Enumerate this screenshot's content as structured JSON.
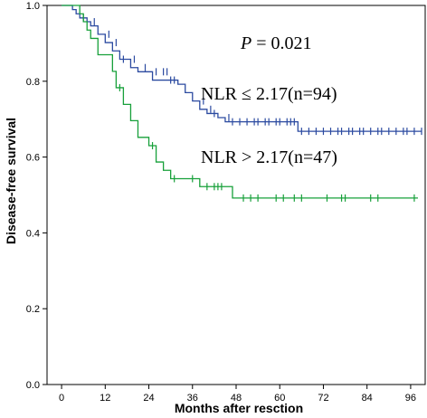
{
  "chart_data": {
    "type": "line",
    "title": "",
    "xlabel": "Months after resction",
    "ylabel": "Disease-free survival",
    "xlim": [
      -4,
      100
    ],
    "ylim": [
      0,
      1.0
    ],
    "x_ticks": [
      0,
      12,
      24,
      36,
      48,
      60,
      72,
      84,
      96
    ],
    "y_ticks": [
      0.0,
      0.2,
      0.4,
      0.6,
      0.8,
      1.0
    ],
    "x_tick_labels": [
      "0",
      "12",
      "24",
      "36",
      "48",
      "60",
      "72",
      "84",
      "96"
    ],
    "y_tick_labels": [
      "0.0",
      "0.2",
      "0.4",
      "0.6",
      "0.8",
      "1.0"
    ],
    "grid": false,
    "annotations": {
      "p_label": "P",
      "p_value": " = 0.021",
      "series_label_1": "NLR ≤ 2.17(n=94)",
      "series_label_2": "NLR > 2.17(n=47)"
    },
    "series": [
      {
        "color": "#2b4aa0",
        "steps": [
          [
            0,
            1.0
          ],
          [
            3,
            1.0
          ],
          [
            3,
            0.989
          ],
          [
            4,
            0.989
          ],
          [
            4,
            0.978
          ],
          [
            5,
            0.978
          ],
          [
            5,
            0.967
          ],
          [
            7,
            0.967
          ],
          [
            7,
            0.957
          ],
          [
            8,
            0.957
          ],
          [
            8,
            0.946
          ],
          [
            10,
            0.946
          ],
          [
            10,
            0.924
          ],
          [
            12,
            0.924
          ],
          [
            12,
            0.902
          ],
          [
            14,
            0.902
          ],
          [
            14,
            0.88
          ],
          [
            16,
            0.88
          ],
          [
            16,
            0.858
          ],
          [
            19,
            0.858
          ],
          [
            19,
            0.836
          ],
          [
            21,
            0.836
          ],
          [
            21,
            0.825
          ],
          [
            25,
            0.825
          ],
          [
            25,
            0.803
          ],
          [
            32,
            0.803
          ],
          [
            32,
            0.792
          ],
          [
            34,
            0.792
          ],
          [
            34,
            0.77
          ],
          [
            36,
            0.77
          ],
          [
            36,
            0.748
          ],
          [
            38,
            0.748
          ],
          [
            38,
            0.726
          ],
          [
            40,
            0.726
          ],
          [
            40,
            0.715
          ],
          [
            43,
            0.715
          ],
          [
            43,
            0.704
          ],
          [
            45,
            0.704
          ],
          [
            45,
            0.693
          ],
          [
            65,
            0.693
          ],
          [
            65,
            0.668
          ],
          [
            99,
            0.668
          ]
        ],
        "censors": [
          [
            6,
            0.967
          ],
          [
            9,
            0.957
          ],
          [
            13,
            0.924
          ],
          [
            15,
            0.902
          ],
          [
            17,
            0.858
          ],
          [
            20,
            0.858
          ],
          [
            23,
            0.836
          ],
          [
            26,
            0.825
          ],
          [
            28,
            0.825
          ],
          [
            29,
            0.825
          ],
          [
            30,
            0.803
          ],
          [
            31,
            0.803
          ],
          [
            39,
            0.748
          ],
          [
            41,
            0.726
          ],
          [
            42,
            0.715
          ],
          [
            46,
            0.704
          ],
          [
            47,
            0.693
          ],
          [
            49,
            0.693
          ],
          [
            51,
            0.693
          ],
          [
            53,
            0.693
          ],
          [
            54,
            0.693
          ],
          [
            56,
            0.693
          ],
          [
            57,
            0.693
          ],
          [
            59,
            0.693
          ],
          [
            60,
            0.693
          ],
          [
            62,
            0.693
          ],
          [
            63,
            0.693
          ],
          [
            64,
            0.693
          ],
          [
            66,
            0.668
          ],
          [
            68,
            0.668
          ],
          [
            70,
            0.668
          ],
          [
            72,
            0.668
          ],
          [
            74,
            0.668
          ],
          [
            76,
            0.668
          ],
          [
            77,
            0.668
          ],
          [
            79,
            0.668
          ],
          [
            80,
            0.668
          ],
          [
            82,
            0.668
          ],
          [
            83,
            0.668
          ],
          [
            85,
            0.668
          ],
          [
            87,
            0.668
          ],
          [
            88,
            0.668
          ],
          [
            90,
            0.668
          ],
          [
            92,
            0.668
          ],
          [
            94,
            0.668
          ],
          [
            95,
            0.668
          ],
          [
            97,
            0.668
          ],
          [
            99,
            0.668
          ]
        ]
      },
      {
        "color": "#17a03a",
        "steps": [
          [
            0,
            1.0
          ],
          [
            5,
            1.0
          ],
          [
            5,
            0.978
          ],
          [
            6,
            0.978
          ],
          [
            6,
            0.957
          ],
          [
            7,
            0.957
          ],
          [
            7,
            0.935
          ],
          [
            8,
            0.935
          ],
          [
            8,
            0.913
          ],
          [
            10,
            0.913
          ],
          [
            10,
            0.87
          ],
          [
            14,
            0.87
          ],
          [
            14,
            0.826
          ],
          [
            15,
            0.826
          ],
          [
            15,
            0.783
          ],
          [
            17,
            0.783
          ],
          [
            17,
            0.739
          ],
          [
            19,
            0.739
          ],
          [
            19,
            0.696
          ],
          [
            21,
            0.696
          ],
          [
            21,
            0.652
          ],
          [
            24,
            0.652
          ],
          [
            24,
            0.63
          ],
          [
            26,
            0.63
          ],
          [
            26,
            0.587
          ],
          [
            28,
            0.587
          ],
          [
            28,
            0.565
          ],
          [
            30,
            0.565
          ],
          [
            30,
            0.543
          ],
          [
            38,
            0.543
          ],
          [
            38,
            0.522
          ],
          [
            47,
            0.522
          ],
          [
            47,
            0.492
          ],
          [
            98,
            0.492
          ]
        ],
        "censors": [
          [
            16,
            0.783
          ],
          [
            25,
            0.63
          ],
          [
            31,
            0.543
          ],
          [
            36,
            0.543
          ],
          [
            40,
            0.522
          ],
          [
            42,
            0.522
          ],
          [
            43,
            0.522
          ],
          [
            44,
            0.522
          ],
          [
            50,
            0.492
          ],
          [
            52,
            0.492
          ],
          [
            54,
            0.492
          ],
          [
            59,
            0.492
          ],
          [
            61,
            0.492
          ],
          [
            64,
            0.492
          ],
          [
            66,
            0.492
          ],
          [
            73,
            0.492
          ],
          [
            77,
            0.492
          ],
          [
            78,
            0.492
          ],
          [
            85,
            0.492
          ],
          [
            87,
            0.492
          ],
          [
            97,
            0.492
          ]
        ]
      }
    ]
  }
}
